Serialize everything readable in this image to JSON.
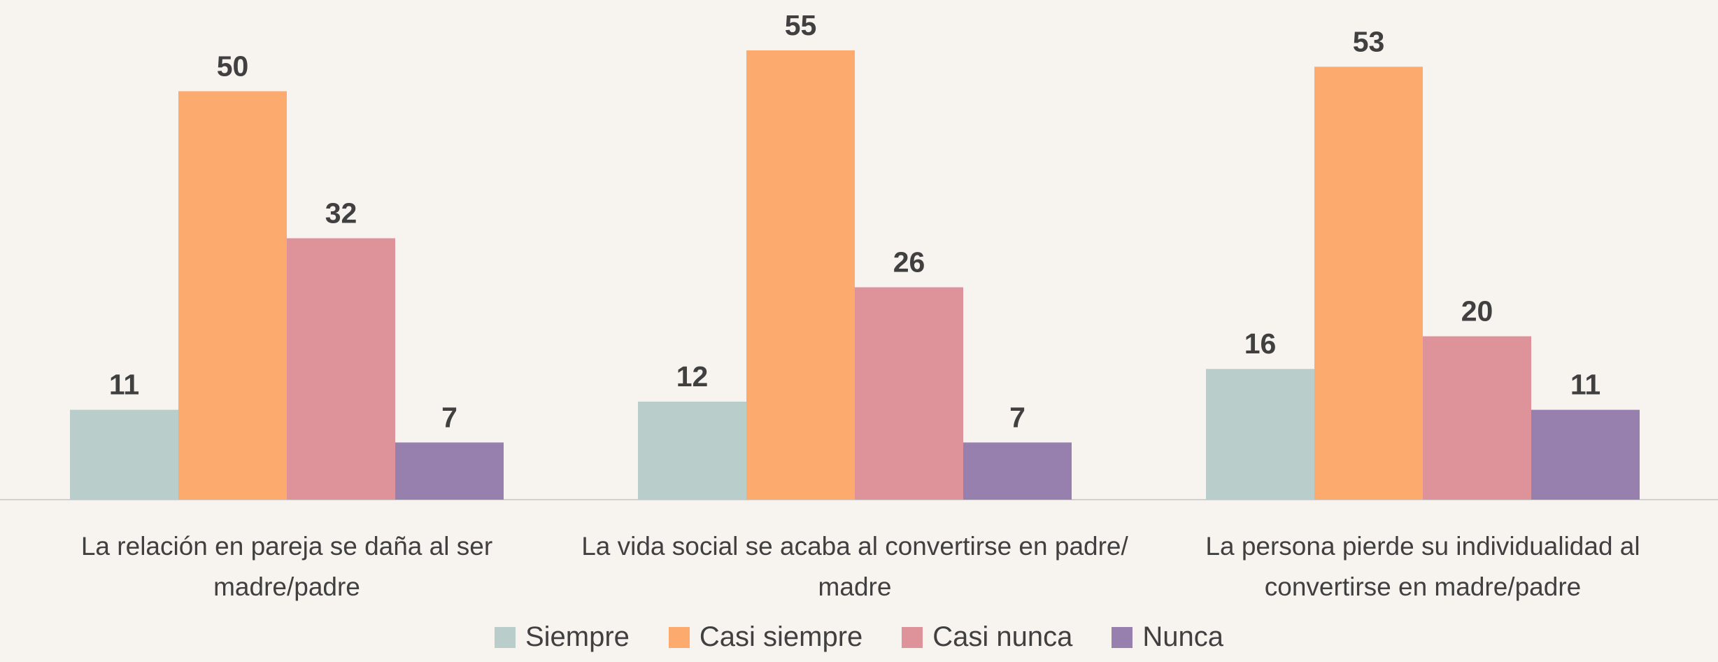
{
  "chart_data": {
    "type": "bar",
    "categories": [
      "La relación en pareja se daña al ser madre/padre",
      "La vida social se acaba al convertirse en padre/ madre",
      "La persona pierde su individualidad al convertirse en madre/padre"
    ],
    "series": [
      {
        "name": "Siempre",
        "color": "#b9ceca",
        "values": [
          11,
          12,
          16
        ]
      },
      {
        "name": "Casi siempre",
        "color": "#fdaa6e",
        "values": [
          50,
          55,
          53
        ]
      },
      {
        "name": "Casi nunca",
        "color": "#de939a",
        "values": [
          32,
          26,
          20
        ]
      },
      {
        "name": "Nunca",
        "color": "#9880ae",
        "values": [
          7,
          7,
          11
        ]
      }
    ],
    "legend": "bottom"
  }
}
